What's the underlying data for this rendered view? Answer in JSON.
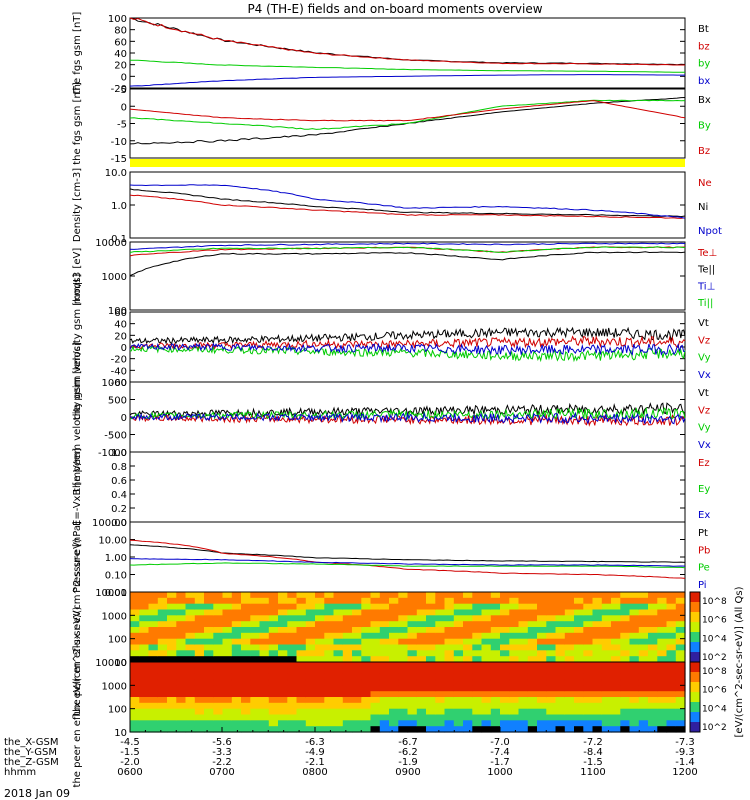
{
  "title": "P4 (TH-E) fields and on-board moments overview",
  "colors": {
    "black": "#000000",
    "red": "#d00000",
    "green": "#00cc00",
    "blue": "#0000cc",
    "yellow": "#ffff00"
  },
  "chart_data": [
    {
      "type": "line",
      "ylabel": "the fgs gsm [nT]",
      "ylim": [
        -25,
        100
      ],
      "yticks": [
        "100",
        "80",
        "60",
        "40",
        "20",
        "0",
        "-20"
      ],
      "legend": [
        "Bt",
        "bz",
        "by",
        "bx"
      ],
      "x": [
        "0600",
        "0700",
        "0800",
        "0900",
        "1000",
        "1100",
        "1200"
      ],
      "series": [
        {
          "name": "Bt",
          "color": "#000000",
          "values": [
            100,
            60,
            38,
            25,
            20,
            19,
            17
          ]
        },
        {
          "name": "bz",
          "color": "#d00000",
          "values": [
            100,
            60,
            37,
            25,
            19,
            18,
            16
          ]
        },
        {
          "name": "by",
          "color": "#00cc00",
          "values": [
            25,
            16,
            12,
            8,
            6,
            5,
            3
          ]
        },
        {
          "name": "bx",
          "color": "#0000cc",
          "values": [
            -22,
            -12,
            -6,
            -4,
            -2,
            -1,
            -2
          ]
        }
      ]
    },
    {
      "type": "line",
      "ylabel": "the fgs gsm [nT]",
      "ylim": [
        -17,
        7
      ],
      "yticks": [
        "5",
        "0",
        "-5",
        "-10",
        "-15"
      ],
      "legend": [
        "Bx",
        "By",
        "Bz"
      ],
      "x": [
        "0600",
        "0700",
        "0800",
        "0900",
        "1000",
        "1100",
        "1200"
      ],
      "series": [
        {
          "name": "Bx",
          "color": "#000000",
          "values": [
            -12,
            -11,
            -9,
            -5,
            -1,
            2,
            4
          ]
        },
        {
          "name": "By",
          "color": "#00cc00",
          "values": [
            -3,
            -5,
            -7,
            -5,
            1,
            3,
            3
          ]
        },
        {
          "name": "Bz",
          "color": "#d00000",
          "values": [
            0,
            -3,
            -4,
            -4,
            0,
            3,
            -3
          ]
        }
      ]
    },
    {
      "type": "line",
      "ylabel": "Density [cm-3]",
      "ylim": [
        0.1,
        10
      ],
      "yscale": "log",
      "yticks": [
        "10.0",
        "1.0",
        "0.1"
      ],
      "legend": [
        "Ne",
        "Ni",
        "Npot"
      ],
      "x": [
        "0600",
        "0700",
        "0800",
        "0900",
        "1000",
        "1100",
        "1200"
      ],
      "series": [
        {
          "name": "Ne",
          "color": "#d00000",
          "values": [
            2.0,
            1.0,
            0.7,
            0.5,
            0.5,
            0.45,
            0.4
          ]
        },
        {
          "name": "Ni",
          "color": "#000000",
          "values": [
            3.0,
            1.5,
            0.9,
            0.6,
            0.55,
            0.5,
            0.45
          ]
        },
        {
          "name": "Npot",
          "color": "#0000cc",
          "values": [
            4.0,
            4.0,
            1.5,
            0.8,
            0.9,
            0.7,
            0.4
          ]
        }
      ]
    },
    {
      "type": "line",
      "ylabel": "moqt3 [eV]",
      "ylim": [
        100,
        10000
      ],
      "yscale": "log",
      "yticks": [
        "10000",
        "1000",
        "100"
      ],
      "legend": [
        "Te⊥",
        "Te||",
        "Ti⊥",
        "Ti||"
      ],
      "x": [
        "0600",
        "0700",
        "0800",
        "0900",
        "1000",
        "1100",
        "1200"
      ],
      "series": [
        {
          "name": "Te⊥",
          "color": "#d00000",
          "values": [
            4000,
            6000,
            6500,
            7000,
            5000,
            7000,
            7000
          ]
        },
        {
          "name": "Te||",
          "color": "#000000",
          "values": [
            1000,
            4500,
            4500,
            4800,
            3000,
            5000,
            5000
          ]
        },
        {
          "name": "Ti⊥",
          "color": "#0000cc",
          "values": [
            6000,
            8000,
            8500,
            9000,
            8500,
            9000,
            9000
          ]
        },
        {
          "name": "Ti||",
          "color": "#00cc00",
          "values": [
            5000,
            6500,
            6500,
            7000,
            5000,
            7000,
            7000
          ]
        }
      ]
    },
    {
      "type": "line",
      "ylabel": "the peim velocity gsm [km/s]",
      "ylim": [
        -60,
        60
      ],
      "yticks": [
        "60",
        "40",
        "20",
        "0",
        "-20",
        "-40",
        "-60"
      ],
      "legend": [
        "Vt",
        "Vz",
        "Vy",
        "Vx"
      ],
      "x": [
        "0600",
        "0700",
        "0800",
        "0900",
        "1000",
        "1100",
        "1200"
      ],
      "series": [
        {
          "name": "Vt",
          "color": "#000000",
          "values": [
            10,
            12,
            15,
            20,
            25,
            25,
            20
          ]
        },
        {
          "name": "Vz",
          "color": "#d00000",
          "values": [
            2,
            3,
            5,
            5,
            8,
            10,
            8
          ]
        },
        {
          "name": "Vy",
          "color": "#00cc00",
          "values": [
            -3,
            -5,
            -8,
            -10,
            -15,
            -15,
            -10
          ]
        },
        {
          "name": "Vx",
          "color": "#0000cc",
          "values": [
            0,
            0,
            -2,
            -2,
            -5,
            -5,
            -3
          ]
        }
      ]
    },
    {
      "type": "line",
      "ylabel": "the peem velocity gsm [km/s]",
      "ylim": [
        -1000,
        1000
      ],
      "yticks": [
        "1000",
        "500",
        "0",
        "-500",
        "-1000"
      ],
      "legend": [
        "Vt",
        "Vz",
        "Vy",
        "Vx"
      ],
      "x": [
        "0600",
        "0700",
        "0800",
        "0900",
        "1000",
        "1100",
        "1200"
      ],
      "series": [
        {
          "name": "Vt",
          "color": "#000000",
          "values": [
            80,
            120,
            150,
            180,
            200,
            220,
            250
          ]
        },
        {
          "name": "Vz",
          "color": "#d00000",
          "values": [
            -30,
            -50,
            -60,
            -70,
            -90,
            -100,
            -110
          ]
        },
        {
          "name": "Vy",
          "color": "#00cc00",
          "values": [
            30,
            50,
            60,
            70,
            80,
            90,
            100
          ]
        },
        {
          "name": "Vx",
          "color": "#0000cc",
          "values": [
            0,
            0,
            -10,
            -20,
            -30,
            -40,
            -50
          ]
        }
      ]
    },
    {
      "type": "line",
      "ylabel": "E=-VxB [mV/m]",
      "ylim": [
        0,
        1
      ],
      "yticks": [
        "1.0",
        "0.8",
        "0.6",
        "0.4",
        "0.2",
        "0.0"
      ],
      "legend": [
        "Ez",
        "Ey",
        "Ex"
      ],
      "x": [
        "0600",
        "0700",
        "0800",
        "0900",
        "1000",
        "1100",
        "1200"
      ],
      "series": []
    },
    {
      "type": "line",
      "ylabel": "Pressure [nPa]",
      "ylim": [
        0.01,
        100
      ],
      "yscale": "log",
      "yticks": [
        "100.00",
        "10.00",
        "1.00",
        "0.10",
        "0.01"
      ],
      "legend": [
        "Pt",
        "Pb",
        "Pe",
        "Pi"
      ],
      "x": [
        "0600",
        "0700",
        "0800",
        "0900",
        "1000",
        "1100",
        "1200"
      ],
      "series": [
        {
          "name": "Pt",
          "color": "#000000",
          "values": [
            5.0,
            1.7,
            0.9,
            0.7,
            0.6,
            0.55,
            0.5
          ]
        },
        {
          "name": "Pb",
          "color": "#d00000",
          "values": [
            9.0,
            1.6,
            0.5,
            0.2,
            0.12,
            0.1,
            0.06
          ]
        },
        {
          "name": "Pe",
          "color": "#00cc00",
          "values": [
            0.35,
            0.45,
            0.4,
            0.3,
            0.3,
            0.3,
            0.25
          ]
        },
        {
          "name": "Pi",
          "color": "#0000cc",
          "values": [
            0.8,
            0.7,
            0.5,
            0.4,
            0.35,
            0.35,
            0.3
          ]
        }
      ]
    },
    {
      "type": "heatmap",
      "ylabel": "the peir en eflux eV/(cm^2-s-sr-eV)",
      "yscale": "log",
      "yticks": [
        "10000",
        "1000",
        "100",
        "10"
      ]
    },
    {
      "type": "heatmap",
      "ylabel": "the peer en eflux eV/(cm^2-s-sr-eV)",
      "yscale": "log",
      "yticks": [
        "10000",
        "1000",
        "100",
        "10"
      ]
    }
  ],
  "colorbar": {
    "label": "[eV/(cm^2-sec-sr-eV)] (All Qs)",
    "ticks": [
      "10^8",
      "10^6",
      "10^4",
      "10^2"
    ]
  },
  "time_axis": {
    "rows": [
      {
        "label": "the_X-GSM",
        "values": [
          "-4.5",
          "-5.6",
          "-6.3",
          "-6.7",
          "-7.0",
          "-7.2",
          "-7.3"
        ]
      },
      {
        "label": "the_Y-GSM",
        "values": [
          "-1.5",
          "-3.3",
          "-4.9",
          "-6.2",
          "-7.4",
          "-8.4",
          "-9.3"
        ]
      },
      {
        "label": "the_Z-GSM",
        "values": [
          "-2.0",
          "-2.2",
          "-2.1",
          "-1.9",
          "-1.7",
          "-1.5",
          "-1.4"
        ]
      },
      {
        "label": "hhmm",
        "values": [
          "0600",
          "0700",
          "0800",
          "0900",
          "1000",
          "1100",
          "1200"
        ]
      }
    ],
    "date": "2018 Jan 09"
  }
}
